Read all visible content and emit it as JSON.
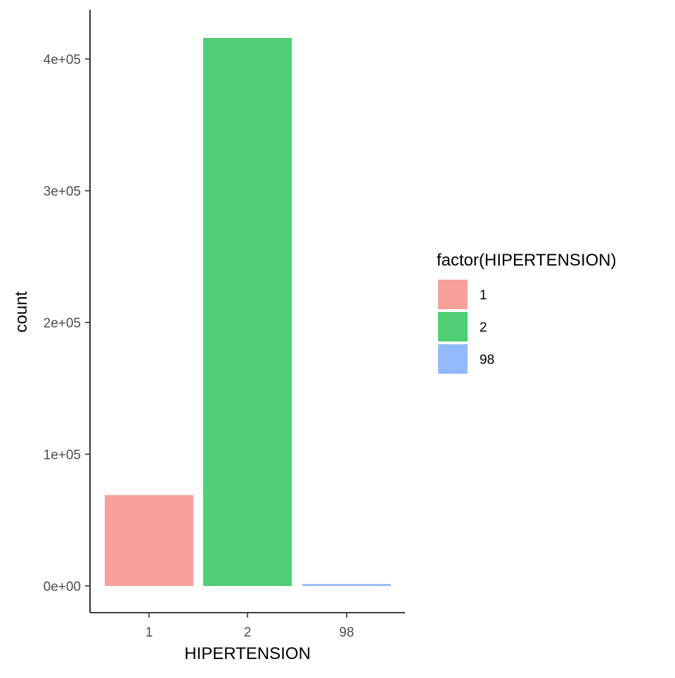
{
  "chart_data": {
    "type": "bar",
    "categories": [
      "1",
      "2",
      "98"
    ],
    "values": [
      69000,
      416000,
      1500
    ],
    "colors": [
      "#F8A19B",
      "#4ECF74",
      "#93B9FD"
    ],
    "xlabel": "HIPERTENSION",
    "ylabel": "count",
    "ylim": [
      0,
      420000
    ],
    "yticks": [
      0,
      100000,
      200000,
      300000,
      400000
    ],
    "ytick_labels": [
      "0e+00",
      "1e+05",
      "2e+05",
      "3e+05",
      "4e+05"
    ],
    "grid": false,
    "legend": {
      "title": "factor(HIPERTENSION)",
      "position": "right",
      "entries": [
        "1",
        "2",
        "98"
      ]
    }
  }
}
